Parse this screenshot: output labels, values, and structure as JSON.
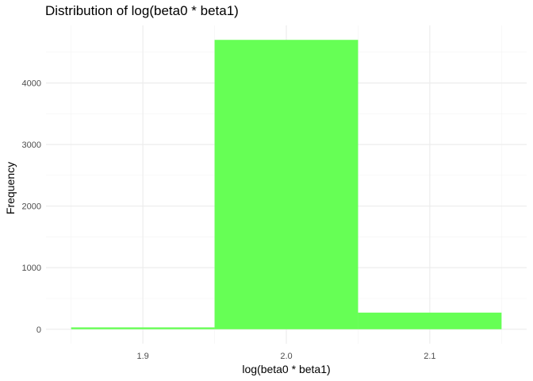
{
  "chart_data": {
    "type": "bar",
    "title": "Distribution of log(beta0 * beta1)",
    "xlabel": "log(beta0 * beta1)",
    "ylabel": "Frequency",
    "bins": [
      {
        "start": 1.85,
        "end": 1.95,
        "count": 30
      },
      {
        "start": 1.95,
        "end": 2.05,
        "count": 4700
      },
      {
        "start": 2.05,
        "end": 2.15,
        "count": 270
      }
    ],
    "xticks": [
      1.9,
      2.0,
      2.1
    ],
    "xtick_labels": [
      "1.9",
      "2.0",
      "2.1"
    ],
    "yticks": [
      0,
      1000,
      2000,
      3000,
      4000
    ],
    "ytick_labels": [
      "0",
      "1000",
      "2000",
      "3000",
      "4000"
    ],
    "xlim": [
      1.8325,
      2.1675
    ],
    "ylim": [
      -235,
      4935
    ],
    "bar_color": "#66ff55",
    "grid": true
  }
}
